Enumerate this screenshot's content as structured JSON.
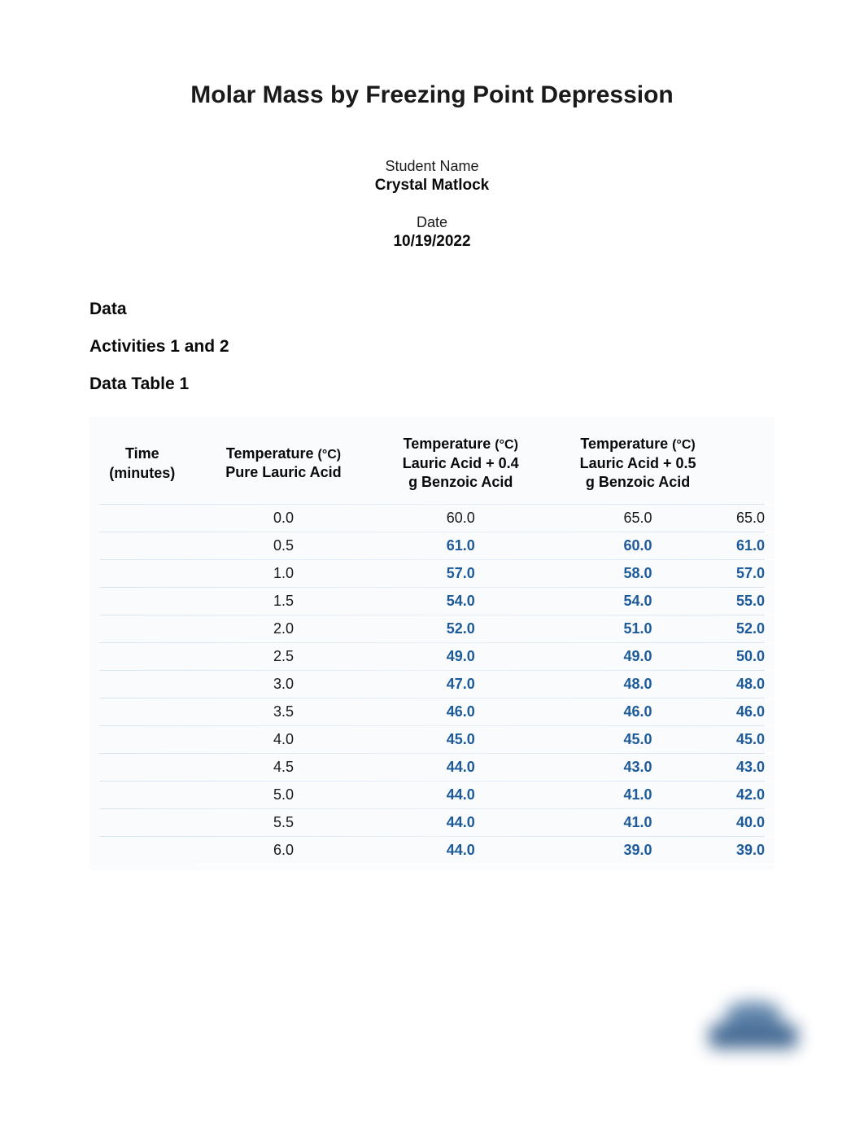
{
  "title": "Molar Mass by Freezing Point Depression",
  "student_name_label": "Student Name",
  "student_name_value": "Crystal Matlock",
  "date_label": "Date",
  "date_value": "10/19/2022",
  "section_data": "Data",
  "section_activities": "Activities 1 and 2",
  "section_table": "Data Table 1",
  "table": {
    "columns": [
      "Time (minutes)",
      "Temperature (°C) Pure Lauric Acid",
      "Temperature (°C) Lauric Acid + 0.4 g Benzoic Acid",
      "Temperature (°C) Lauric Acid + 0.5 g Benzoic Acid"
    ],
    "col_html": {
      "c0a": "Time",
      "c0b": "(minutes)",
      "c1a": "Temperature ",
      "c1b": "(°C)",
      "c1c": "Pure Lauric Acid",
      "c2a": "Temperature ",
      "c2b": "(°C)",
      "c2c": "Lauric Acid + 0.4",
      "c2d": "g Benzoic Acid",
      "c3a": "Temperature ",
      "c3b": "(°C)",
      "c3c": "Lauric Acid + 0.5",
      "c3d": "g Benzoic Acid"
    },
    "highlight_color": "#1d5a9a",
    "plain_color": "#1a1a1a",
    "background_color": "#f9fbfd",
    "separator_color": "#e0e8f2",
    "rows": [
      {
        "t": "0.0",
        "v": [
          "60.0",
          "65.0",
          "65.0"
        ],
        "hl": [
          false,
          false,
          false
        ]
      },
      {
        "t": "0.5",
        "v": [
          "61.0",
          "60.0",
          "61.0"
        ],
        "hl": [
          true,
          true,
          true
        ]
      },
      {
        "t": "1.0",
        "v": [
          "57.0",
          "58.0",
          "57.0"
        ],
        "hl": [
          true,
          true,
          true
        ]
      },
      {
        "t": "1.5",
        "v": [
          "54.0",
          "54.0",
          "55.0"
        ],
        "hl": [
          true,
          true,
          true
        ]
      },
      {
        "t": "2.0",
        "v": [
          "52.0",
          "51.0",
          "52.0"
        ],
        "hl": [
          true,
          true,
          true
        ]
      },
      {
        "t": "2.5",
        "v": [
          "49.0",
          "49.0",
          "50.0"
        ],
        "hl": [
          true,
          true,
          true
        ]
      },
      {
        "t": "3.0",
        "v": [
          "47.0",
          "48.0",
          "48.0"
        ],
        "hl": [
          true,
          true,
          true
        ]
      },
      {
        "t": "3.5",
        "v": [
          "46.0",
          "46.0",
          "46.0"
        ],
        "hl": [
          true,
          true,
          true
        ]
      },
      {
        "t": "4.0",
        "v": [
          "45.0",
          "45.0",
          "45.0"
        ],
        "hl": [
          true,
          true,
          true
        ]
      },
      {
        "t": "4.5",
        "v": [
          "44.0",
          "43.0",
          "43.0"
        ],
        "hl": [
          true,
          true,
          true
        ]
      },
      {
        "t": "5.0",
        "v": [
          "44.0",
          "41.0",
          "42.0"
        ],
        "hl": [
          true,
          true,
          true
        ]
      },
      {
        "t": "5.5",
        "v": [
          "44.0",
          "41.0",
          "40.0"
        ],
        "hl": [
          true,
          true,
          true
        ]
      },
      {
        "t": "6.0",
        "v": [
          "44.0",
          "39.0",
          "39.0"
        ],
        "hl": [
          true,
          true,
          true
        ]
      }
    ]
  }
}
